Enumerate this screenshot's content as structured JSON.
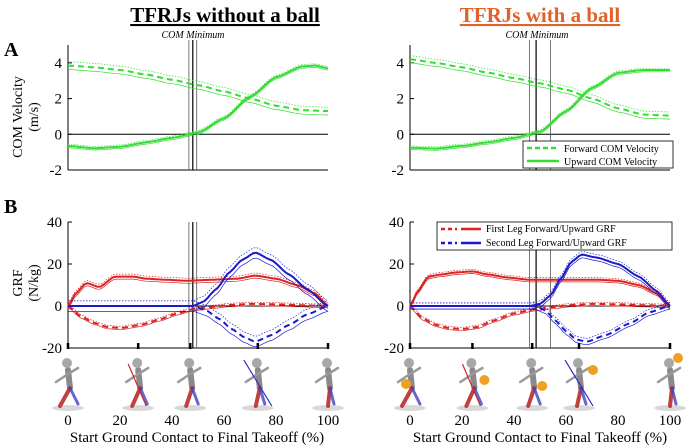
{
  "titles": {
    "left": "TFRJs without a ball",
    "right": "TFRJs with a ball",
    "left_color": "#000000",
    "right_color": "#e0622a"
  },
  "panel_letters": {
    "a": "A",
    "b": "B"
  },
  "com_minimum_label": "COM Minimum",
  "xlabel": "Start Ground Contact to Final Takeoff (%)",
  "colors": {
    "green": "#33dd33",
    "red": "#dd2222",
    "blue": "#1a1acc",
    "black": "#000000",
    "gray": "#888888"
  },
  "legend_a": {
    "forward": "Forward COM Velocity",
    "upward": "Upward COM Velocity"
  },
  "legend_b": {
    "first": "First Leg Forward/Upward GRF",
    "second": "Second Leg Forward/Upward GRF"
  },
  "pictogram_icons": [
    "running-figure-icon",
    "running-figure-icon",
    "running-figure-icon",
    "running-figure-icon",
    "running-figure-icon"
  ],
  "chart_data": [
    {
      "id": "A-left",
      "type": "line",
      "title": "TFRJs without a ball",
      "xlabel": "",
      "ylabel": "COM Velocity (m/s)",
      "xlim": [
        0,
        100
      ],
      "ylim": [
        -2,
        5
      ],
      "yticks": [
        -2,
        0,
        2,
        4
      ],
      "vlines": [
        46.5,
        48.0,
        49.5
      ],
      "series": [
        {
          "name": "Forward COM Velocity",
          "style": "dashed",
          "color": "green",
          "x": [
            0,
            10,
            20,
            30,
            40,
            50,
            60,
            70,
            80,
            90,
            100
          ],
          "y": [
            3.85,
            3.75,
            3.6,
            3.35,
            3.05,
            2.75,
            2.4,
            2.0,
            1.6,
            1.35,
            1.3
          ],
          "band": 0.22
        },
        {
          "name": "Upward COM Velocity",
          "style": "solid",
          "color": "green",
          "x": [
            0,
            10,
            20,
            30,
            40,
            50,
            60,
            70,
            80,
            90,
            95,
            100
          ],
          "y": [
            -0.65,
            -0.78,
            -0.7,
            -0.45,
            -0.2,
            0.1,
            0.9,
            2.1,
            3.2,
            3.8,
            3.85,
            3.7
          ],
          "band": 0.1
        }
      ]
    },
    {
      "id": "A-right",
      "type": "line",
      "title": "TFRJs with a ball",
      "xlabel": "",
      "ylabel": "",
      "xlim": [
        0,
        100
      ],
      "ylim": [
        -2,
        5
      ],
      "yticks": [
        -2,
        0,
        2,
        4
      ],
      "vlines": [
        46.0,
        48.5,
        54.0
      ],
      "series": [
        {
          "name": "Forward COM Velocity",
          "style": "dashed",
          "color": "green",
          "x": [
            0,
            10,
            20,
            30,
            40,
            50,
            60,
            70,
            80,
            90,
            100
          ],
          "y": [
            4.2,
            4.0,
            3.75,
            3.45,
            3.15,
            2.85,
            2.5,
            2.0,
            1.45,
            1.1,
            1.05
          ],
          "band": 0.2
        },
        {
          "name": "Upward COM Velocity",
          "style": "solid",
          "color": "green",
          "x": [
            0,
            10,
            20,
            30,
            40,
            50,
            60,
            70,
            80,
            90,
            100
          ],
          "y": [
            -0.75,
            -0.8,
            -0.65,
            -0.45,
            -0.2,
            0.15,
            1.3,
            2.6,
            3.45,
            3.6,
            3.6
          ],
          "band": 0.1
        }
      ]
    },
    {
      "id": "B-left",
      "type": "line",
      "title": "",
      "xlabel": "Start Ground Contact to Final Takeoff (%)",
      "ylabel": "GRF (N/kg)",
      "xlim": [
        0,
        100
      ],
      "ylim": [
        -20,
        40
      ],
      "yticks": [
        -20,
        0,
        20,
        40
      ],
      "xticks": [
        0,
        20,
        40,
        60,
        80,
        100
      ],
      "vlines": [
        46.5,
        48.0,
        49.5
      ],
      "phase_ticks": [
        0,
        27,
        47,
        73,
        100
      ],
      "series": [
        {
          "name": "First Leg Upward GRF",
          "style": "solid",
          "color": "red",
          "x": [
            0,
            3,
            7,
            12,
            18,
            25,
            30,
            38,
            46,
            55,
            65,
            72,
            80,
            88,
            95,
            100
          ],
          "y": [
            0,
            6,
            11,
            9,
            14,
            14,
            13,
            12.5,
            12,
            12.5,
            13,
            14.5,
            13,
            10,
            6,
            0
          ],
          "band": 1.2
        },
        {
          "name": "First Leg Forward GRF",
          "style": "dashed",
          "color": "red",
          "x": [
            0,
            5,
            10,
            15,
            20,
            28,
            35,
            42,
            48,
            55,
            62,
            70,
            80,
            90,
            100
          ],
          "y": [
            0,
            -5,
            -8,
            -10,
            -10.5,
            -9,
            -6.5,
            -3.5,
            -1.5,
            -0.5,
            0.5,
            1,
            0.8,
            0.4,
            0
          ],
          "band": 0.8
        },
        {
          "name": "Second Leg Upward GRF",
          "style": "solid",
          "color": "blue",
          "x": [
            0,
            40,
            48,
            52,
            57,
            62,
            67,
            72,
            78,
            85,
            92,
            100
          ],
          "y": [
            0,
            0,
            0,
            2,
            8,
            16,
            22,
            25.5,
            22,
            15,
            8,
            0
          ],
          "band": 2.5
        },
        {
          "name": "Second Leg Forward GRF",
          "style": "dashed",
          "color": "blue",
          "x": [
            0,
            48,
            53,
            58,
            63,
            68,
            72,
            78,
            85,
            92,
            100
          ],
          "y": [
            0,
            0,
            -2,
            -6,
            -11,
            -15,
            -17,
            -14,
            -9,
            -4,
            0
          ],
          "band": 2.5
        }
      ]
    },
    {
      "id": "B-right",
      "type": "line",
      "title": "",
      "xlabel": "Start Ground Contact to Final Takeoff (%)",
      "ylabel": "",
      "xlim": [
        0,
        100
      ],
      "ylim": [
        -20,
        40
      ],
      "yticks": [
        -20,
        0,
        20,
        40
      ],
      "xticks": [
        0,
        20,
        40,
        60,
        80,
        100
      ],
      "vlines": [
        46.0,
        48.5,
        54.0
      ],
      "phase_ticks": [
        0,
        24,
        47,
        65,
        100
      ],
      "legend": "top-right",
      "series": [
        {
          "name": "First Leg Upward GRF",
          "style": "solid",
          "color": "red",
          "x": [
            0,
            3,
            7,
            12,
            18,
            24,
            30,
            38,
            46,
            55,
            65,
            72,
            80,
            88,
            95,
            100
          ],
          "y": [
            0,
            7,
            14,
            15,
            16,
            16.5,
            15,
            13.5,
            12.5,
            12.5,
            12.5,
            12.5,
            12,
            10,
            6,
            0
          ],
          "band": 1.0
        },
        {
          "name": "First Leg Forward GRF",
          "style": "dashed",
          "color": "red",
          "x": [
            0,
            5,
            10,
            15,
            20,
            26,
            32,
            40,
            48,
            55,
            62,
            70,
            80,
            90,
            100
          ],
          "y": [
            0,
            -6,
            -9,
            -10.5,
            -11,
            -10,
            -7,
            -3.5,
            -1.5,
            -0.5,
            0.5,
            1,
            0.8,
            0.4,
            0
          ],
          "band": 0.8
        },
        {
          "name": "Second Leg Upward GRF",
          "style": "solid",
          "color": "blue",
          "x": [
            0,
            46,
            50,
            54,
            58,
            62,
            66,
            72,
            80,
            88,
            95,
            100
          ],
          "y": [
            0,
            0,
            1,
            5,
            13,
            21,
            24.5,
            23,
            20,
            14,
            7,
            0
          ],
          "band": 1.5
        },
        {
          "name": "Second Leg Forward GRF",
          "style": "dashed",
          "color": "blue",
          "x": [
            0,
            48,
            52,
            56,
            60,
            64,
            68,
            75,
            85,
            92,
            100
          ],
          "y": [
            0,
            0,
            -2,
            -7,
            -12,
            -16,
            -17,
            -14,
            -8,
            -3,
            0
          ],
          "band": 1.5
        }
      ]
    }
  ]
}
